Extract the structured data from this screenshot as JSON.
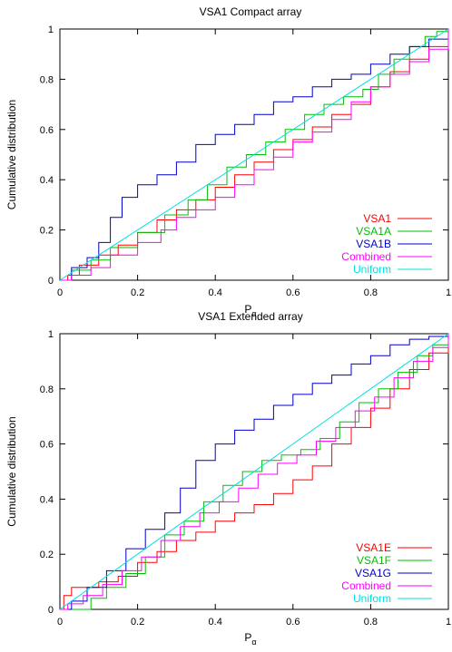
{
  "colors": {
    "axes": "#000000"
  },
  "chart_data": [
    {
      "type": "line",
      "title": "VSA1 Compact array",
      "xlabel": "P",
      "xlabel_sub": "α",
      "ylabel": "Cumulative distribution",
      "xlim": [
        0,
        1
      ],
      "ylim": [
        0,
        1
      ],
      "xticks": [
        "0",
        "0.2",
        "0.4",
        "0.6",
        "0.8",
        "1"
      ],
      "yticks": [
        "0",
        "0.2",
        "0.4",
        "0.6",
        "0.8",
        "1"
      ],
      "legend_position": "bottom-right",
      "series": [
        {
          "name": "VSA1",
          "color": "#ff0000",
          "x": [
            0,
            0.02,
            0.05,
            0.1,
            0.15,
            0.2,
            0.25,
            0.3,
            0.35,
            0.4,
            0.45,
            0.5,
            0.55,
            0.6,
            0.65,
            0.7,
            0.75,
            0.8,
            0.85,
            0.9,
            0.95,
            1.0
          ],
          "y": [
            0,
            0.02,
            0.06,
            0.1,
            0.14,
            0.19,
            0.24,
            0.28,
            0.32,
            0.37,
            0.42,
            0.47,
            0.52,
            0.56,
            0.61,
            0.66,
            0.7,
            0.77,
            0.83,
            0.88,
            0.93,
            1.0
          ]
        },
        {
          "name": "VSA1A",
          "color": "#00c000",
          "x": [
            0,
            0.03,
            0.08,
            0.13,
            0.2,
            0.27,
            0.33,
            0.38,
            0.43,
            0.48,
            0.53,
            0.58,
            0.63,
            0.68,
            0.73,
            0.78,
            0.82,
            0.86,
            0.9,
            0.94,
            0.97,
            1.0
          ],
          "y": [
            0,
            0.04,
            0.08,
            0.13,
            0.19,
            0.26,
            0.32,
            0.38,
            0.45,
            0.5,
            0.55,
            0.6,
            0.66,
            0.7,
            0.73,
            0.76,
            0.82,
            0.88,
            0.93,
            0.97,
            0.99,
            1.0
          ]
        },
        {
          "name": "VSA1B",
          "color": "#0000cc",
          "x": [
            0,
            0.03,
            0.07,
            0.1,
            0.13,
            0.16,
            0.2,
            0.25,
            0.3,
            0.35,
            0.4,
            0.45,
            0.5,
            0.55,
            0.6,
            0.65,
            0.7,
            0.75,
            0.8,
            0.85,
            0.9,
            0.95,
            1.0
          ],
          "y": [
            0,
            0.05,
            0.09,
            0.15,
            0.25,
            0.33,
            0.38,
            0.42,
            0.47,
            0.54,
            0.58,
            0.62,
            0.66,
            0.71,
            0.73,
            0.77,
            0.8,
            0.82,
            0.86,
            0.9,
            0.93,
            0.96,
            1.0
          ]
        },
        {
          "name": "Combined",
          "color": "#ff00ff",
          "x": [
            0,
            0.03,
            0.08,
            0.13,
            0.2,
            0.26,
            0.3,
            0.35,
            0.4,
            0.45,
            0.5,
            0.55,
            0.6,
            0.65,
            0.7,
            0.75,
            0.8,
            0.85,
            0.9,
            0.95,
            1.0
          ],
          "y": [
            0,
            0.02,
            0.05,
            0.1,
            0.15,
            0.2,
            0.25,
            0.28,
            0.33,
            0.38,
            0.44,
            0.49,
            0.55,
            0.59,
            0.64,
            0.71,
            0.77,
            0.82,
            0.87,
            0.92,
            1.0
          ]
        },
        {
          "name": "Uniform",
          "color": "#00e0e0",
          "x": [
            0,
            1
          ],
          "y": [
            0,
            1
          ]
        }
      ]
    },
    {
      "type": "line",
      "title": "VSA1 Extended array",
      "xlabel": "P",
      "xlabel_sub": "α",
      "ylabel": "Cumulative distribution",
      "xlim": [
        0,
        1
      ],
      "ylim": [
        0,
        1
      ],
      "xticks": [
        "0",
        "0.2",
        "0.4",
        "0.6",
        "0.8",
        "1"
      ],
      "yticks": [
        "0",
        "0.2",
        "0.4",
        "0.6",
        "0.8",
        "1"
      ],
      "legend_position": "bottom-right",
      "series": [
        {
          "name": "VSA1E",
          "color": "#ff0000",
          "x": [
            0,
            0.01,
            0.03,
            0.07,
            0.1,
            0.15,
            0.2,
            0.25,
            0.3,
            0.35,
            0.4,
            0.45,
            0.5,
            0.55,
            0.6,
            0.65,
            0.7,
            0.75,
            0.8,
            0.85,
            0.9,
            0.95,
            1.0
          ],
          "y": [
            0,
            0.05,
            0.08,
            0.08,
            0.1,
            0.12,
            0.17,
            0.21,
            0.25,
            0.28,
            0.32,
            0.35,
            0.38,
            0.42,
            0.47,
            0.52,
            0.6,
            0.66,
            0.73,
            0.8,
            0.87,
            0.93,
            1.0
          ]
        },
        {
          "name": "VSA1F",
          "color": "#00c000",
          "x": [
            0,
            0.05,
            0.08,
            0.12,
            0.17,
            0.22,
            0.27,
            0.32,
            0.37,
            0.42,
            0.47,
            0.52,
            0.57,
            0.62,
            0.67,
            0.72,
            0.77,
            0.82,
            0.87,
            0.92,
            0.96,
            1.0
          ],
          "y": [
            0,
            0.0,
            0.04,
            0.08,
            0.13,
            0.19,
            0.27,
            0.32,
            0.39,
            0.45,
            0.5,
            0.54,
            0.56,
            0.58,
            0.62,
            0.68,
            0.75,
            0.8,
            0.86,
            0.92,
            0.96,
            1.0
          ]
        },
        {
          "name": "VSA1G",
          "color": "#0000cc",
          "x": [
            0,
            0.03,
            0.07,
            0.12,
            0.17,
            0.22,
            0.27,
            0.31,
            0.35,
            0.4,
            0.45,
            0.5,
            0.55,
            0.6,
            0.65,
            0.7,
            0.75,
            0.8,
            0.85,
            0.9,
            0.95,
            1.0
          ],
          "y": [
            0,
            0.03,
            0.08,
            0.14,
            0.22,
            0.29,
            0.35,
            0.44,
            0.54,
            0.6,
            0.65,
            0.69,
            0.74,
            0.78,
            0.82,
            0.85,
            0.89,
            0.92,
            0.96,
            0.98,
            0.99,
            1.0
          ]
        },
        {
          "name": "Combined",
          "color": "#ff00ff",
          "x": [
            0,
            0.02,
            0.06,
            0.11,
            0.16,
            0.21,
            0.26,
            0.31,
            0.36,
            0.41,
            0.46,
            0.51,
            0.56,
            0.61,
            0.66,
            0.71,
            0.76,
            0.81,
            0.86,
            0.91,
            0.96,
            1.0
          ],
          "y": [
            0,
            0.02,
            0.05,
            0.09,
            0.14,
            0.19,
            0.25,
            0.3,
            0.35,
            0.39,
            0.44,
            0.49,
            0.53,
            0.56,
            0.61,
            0.66,
            0.72,
            0.77,
            0.84,
            0.9,
            0.95,
            1.0
          ]
        },
        {
          "name": "Uniform",
          "color": "#00e0e0",
          "x": [
            0,
            1
          ],
          "y": [
            0,
            1
          ]
        }
      ]
    }
  ]
}
